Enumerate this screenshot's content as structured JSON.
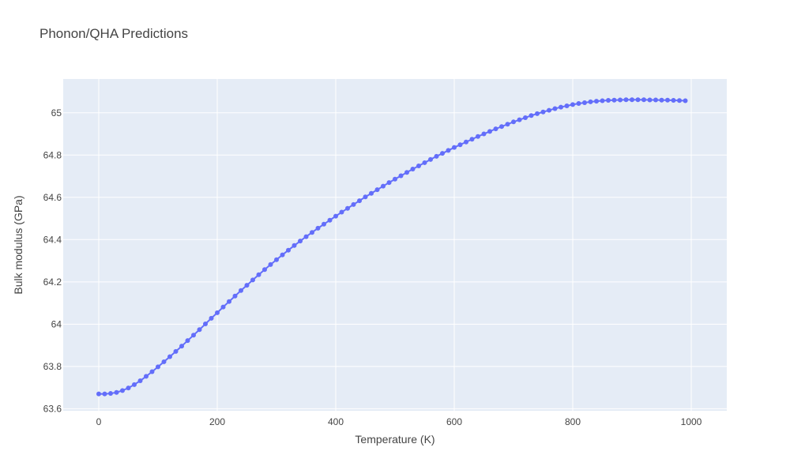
{
  "chart_data": {
    "type": "line",
    "title": "Phonon/QHA Predictions",
    "xlabel": "Temperature (K)",
    "ylabel": "Bulk modulus (GPa)",
    "xlim": [
      -60,
      1060
    ],
    "ylim": [
      63.59,
      65.16
    ],
    "xticks": [
      0,
      200,
      400,
      600,
      800,
      1000
    ],
    "xtick_labels": [
      "0",
      "200",
      "400",
      "600",
      "800",
      "1000"
    ],
    "yticks": [
      63.6,
      63.8,
      64.0,
      64.2,
      64.4,
      64.6,
      64.8,
      65.0
    ],
    "ytick_labels": [
      "63.6",
      "63.8",
      "64",
      "64.2",
      "64.4",
      "64.6",
      "64.8",
      "65"
    ],
    "grid": true,
    "legend": "none",
    "colors": {
      "plot_bg": "#e5ecf6",
      "grid": "#ffffff",
      "series": "#636efa"
    },
    "series": [
      {
        "name": "",
        "x": [
          0,
          10,
          20,
          30,
          40,
          50,
          60,
          70,
          80,
          90,
          100,
          110,
          120,
          130,
          140,
          150,
          160,
          170,
          180,
          190,
          200,
          210,
          220,
          230,
          240,
          250,
          260,
          270,
          280,
          290,
          300,
          310,
          320,
          330,
          340,
          350,
          360,
          370,
          380,
          390,
          400,
          410,
          420,
          430,
          440,
          450,
          460,
          470,
          480,
          490,
          500,
          510,
          520,
          530,
          540,
          550,
          560,
          570,
          580,
          590,
          600,
          610,
          620,
          630,
          640,
          650,
          660,
          670,
          680,
          690,
          700,
          710,
          720,
          730,
          740,
          750,
          760,
          770,
          780,
          790,
          800,
          810,
          820,
          830,
          840,
          850,
          860,
          870,
          880,
          890,
          900,
          910,
          920,
          930,
          940,
          950,
          960,
          970,
          980,
          990
        ],
        "y": [
          63.67,
          63.67,
          63.672,
          63.677,
          63.686,
          63.698,
          63.714,
          63.732,
          63.753,
          63.775,
          63.798,
          63.822,
          63.846,
          63.871,
          63.896,
          63.922,
          63.948,
          63.974,
          64.001,
          64.028,
          64.054,
          64.081,
          64.107,
          64.133,
          64.159,
          64.184,
          64.209,
          64.234,
          64.258,
          64.282,
          64.305,
          64.328,
          64.35,
          64.372,
          64.393,
          64.414,
          64.434,
          64.454,
          64.473,
          64.492,
          64.511,
          64.53,
          64.548,
          64.566,
          64.584,
          64.602,
          64.619,
          64.636,
          64.653,
          64.67,
          64.686,
          64.702,
          64.718,
          64.734,
          64.749,
          64.764,
          64.779,
          64.794,
          64.808,
          64.822,
          64.836,
          64.849,
          64.862,
          64.875,
          64.888,
          64.9,
          64.912,
          64.924,
          64.935,
          64.946,
          64.957,
          64.967,
          64.977,
          64.987,
          64.996,
          65.004,
          65.012,
          65.02,
          65.027,
          65.033,
          65.039,
          65.044,
          65.048,
          65.052,
          65.055,
          65.057,
          65.059,
          65.06,
          65.061,
          65.062,
          65.062,
          65.062,
          65.062,
          65.061,
          65.061,
          65.06,
          65.06,
          65.059,
          65.058,
          65.057
        ]
      }
    ]
  }
}
